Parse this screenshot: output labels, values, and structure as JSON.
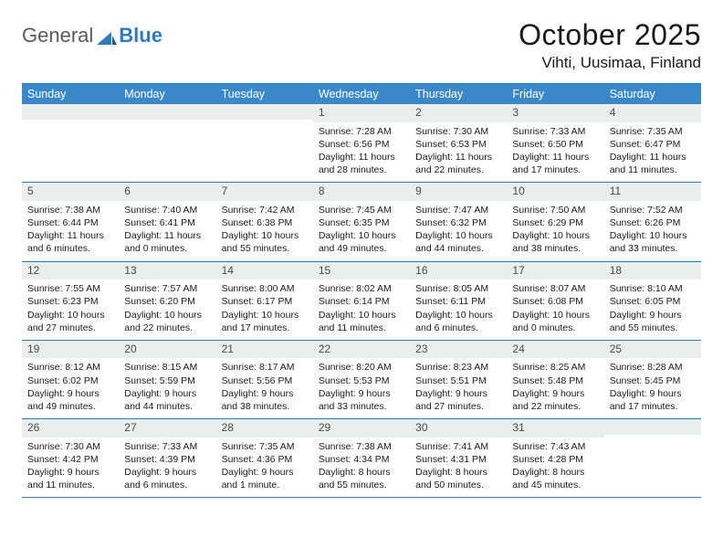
{
  "logo": {
    "text1": "General",
    "text2": "Blue"
  },
  "title": "October 2025",
  "location": "Vihti, Uusimaa, Finland",
  "colors": {
    "header_bg": "#3b88c9",
    "border": "#2f7bbf",
    "daynum_bg": "#eceded",
    "text": "#1a1a1a",
    "logo_gray": "#5a5a5a",
    "logo_blue": "#2f7bbf"
  },
  "day_names": [
    "Sunday",
    "Monday",
    "Tuesday",
    "Wednesday",
    "Thursday",
    "Friday",
    "Saturday"
  ],
  "weeks": [
    [
      null,
      null,
      null,
      {
        "n": "1",
        "sr": "7:28 AM",
        "ss": "6:56 PM",
        "dl": "11 hours and 28 minutes."
      },
      {
        "n": "2",
        "sr": "7:30 AM",
        "ss": "6:53 PM",
        "dl": "11 hours and 22 minutes."
      },
      {
        "n": "3",
        "sr": "7:33 AM",
        "ss": "6:50 PM",
        "dl": "11 hours and 17 minutes."
      },
      {
        "n": "4",
        "sr": "7:35 AM",
        "ss": "6:47 PM",
        "dl": "11 hours and 11 minutes."
      }
    ],
    [
      {
        "n": "5",
        "sr": "7:38 AM",
        "ss": "6:44 PM",
        "dl": "11 hours and 6 minutes."
      },
      {
        "n": "6",
        "sr": "7:40 AM",
        "ss": "6:41 PM",
        "dl": "11 hours and 0 minutes."
      },
      {
        "n": "7",
        "sr": "7:42 AM",
        "ss": "6:38 PM",
        "dl": "10 hours and 55 minutes."
      },
      {
        "n": "8",
        "sr": "7:45 AM",
        "ss": "6:35 PM",
        "dl": "10 hours and 49 minutes."
      },
      {
        "n": "9",
        "sr": "7:47 AM",
        "ss": "6:32 PM",
        "dl": "10 hours and 44 minutes."
      },
      {
        "n": "10",
        "sr": "7:50 AM",
        "ss": "6:29 PM",
        "dl": "10 hours and 38 minutes."
      },
      {
        "n": "11",
        "sr": "7:52 AM",
        "ss": "6:26 PM",
        "dl": "10 hours and 33 minutes."
      }
    ],
    [
      {
        "n": "12",
        "sr": "7:55 AM",
        "ss": "6:23 PM",
        "dl": "10 hours and 27 minutes."
      },
      {
        "n": "13",
        "sr": "7:57 AM",
        "ss": "6:20 PM",
        "dl": "10 hours and 22 minutes."
      },
      {
        "n": "14",
        "sr": "8:00 AM",
        "ss": "6:17 PM",
        "dl": "10 hours and 17 minutes."
      },
      {
        "n": "15",
        "sr": "8:02 AM",
        "ss": "6:14 PM",
        "dl": "10 hours and 11 minutes."
      },
      {
        "n": "16",
        "sr": "8:05 AM",
        "ss": "6:11 PM",
        "dl": "10 hours and 6 minutes."
      },
      {
        "n": "17",
        "sr": "8:07 AM",
        "ss": "6:08 PM",
        "dl": "10 hours and 0 minutes."
      },
      {
        "n": "18",
        "sr": "8:10 AM",
        "ss": "6:05 PM",
        "dl": "9 hours and 55 minutes."
      }
    ],
    [
      {
        "n": "19",
        "sr": "8:12 AM",
        "ss": "6:02 PM",
        "dl": "9 hours and 49 minutes."
      },
      {
        "n": "20",
        "sr": "8:15 AM",
        "ss": "5:59 PM",
        "dl": "9 hours and 44 minutes."
      },
      {
        "n": "21",
        "sr": "8:17 AM",
        "ss": "5:56 PM",
        "dl": "9 hours and 38 minutes."
      },
      {
        "n": "22",
        "sr": "8:20 AM",
        "ss": "5:53 PM",
        "dl": "9 hours and 33 minutes."
      },
      {
        "n": "23",
        "sr": "8:23 AM",
        "ss": "5:51 PM",
        "dl": "9 hours and 27 minutes."
      },
      {
        "n": "24",
        "sr": "8:25 AM",
        "ss": "5:48 PM",
        "dl": "9 hours and 22 minutes."
      },
      {
        "n": "25",
        "sr": "8:28 AM",
        "ss": "5:45 PM",
        "dl": "9 hours and 17 minutes."
      }
    ],
    [
      {
        "n": "26",
        "sr": "7:30 AM",
        "ss": "4:42 PM",
        "dl": "9 hours and 11 minutes."
      },
      {
        "n": "27",
        "sr": "7:33 AM",
        "ss": "4:39 PM",
        "dl": "9 hours and 6 minutes."
      },
      {
        "n": "28",
        "sr": "7:35 AM",
        "ss": "4:36 PM",
        "dl": "9 hours and 1 minute."
      },
      {
        "n": "29",
        "sr": "7:38 AM",
        "ss": "4:34 PM",
        "dl": "8 hours and 55 minutes."
      },
      {
        "n": "30",
        "sr": "7:41 AM",
        "ss": "4:31 PM",
        "dl": "8 hours and 50 minutes."
      },
      {
        "n": "31",
        "sr": "7:43 AM",
        "ss": "4:28 PM",
        "dl": "8 hours and 45 minutes."
      },
      null
    ]
  ],
  "labels": {
    "sunrise": "Sunrise:",
    "sunset": "Sunset:",
    "daylight": "Daylight:"
  }
}
